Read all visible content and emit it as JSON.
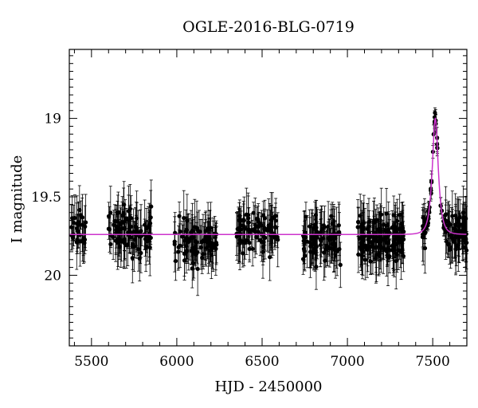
{
  "chart_data": {
    "type": "scatter",
    "title": "OGLE-2016-BLG-0719",
    "xlabel": "HJD - 2450000",
    "ylabel": "I magnitude",
    "xlim": [
      5370,
      7700
    ],
    "ylim": [
      20.45,
      18.56
    ],
    "y_inverted": true,
    "x_ticks": [
      5500,
      6000,
      6500,
      7000,
      7500
    ],
    "x_tick_labels": [
      "5500",
      "6000",
      "6500",
      "7000",
      "7500"
    ],
    "y_ticks": [
      19,
      19.5,
      20
    ],
    "y_tick_labels": [
      "19",
      "19.5",
      "20"
    ],
    "grid": false,
    "legend": "none",
    "model_color": "#cc33cc",
    "point_color": "#000000",
    "model": {
      "baseline_mag": 19.74,
      "peak_mag": 19.0,
      "peak_hjd": 7515,
      "duration_days": 28
    },
    "observing_seasons": [
      {
        "start": 5380,
        "end": 5470,
        "mean_mag": 19.72,
        "scatter": 0.15,
        "n": 28
      },
      {
        "start": 5600,
        "end": 5850,
        "mean_mag": 19.73,
        "scatter": 0.17,
        "n": 95
      },
      {
        "start": 5985,
        "end": 6240,
        "mean_mag": 19.79,
        "scatter": 0.17,
        "n": 90
      },
      {
        "start": 6350,
        "end": 6600,
        "mean_mag": 19.72,
        "scatter": 0.16,
        "n": 85
      },
      {
        "start": 6740,
        "end": 6960,
        "mean_mag": 19.78,
        "scatter": 0.15,
        "n": 95
      },
      {
        "start": 7060,
        "end": 7330,
        "mean_mag": 19.76,
        "scatter": 0.17,
        "n": 150
      },
      {
        "start": 7440,
        "end": 7700,
        "mean_mag": 19.74,
        "scatter": 0.15,
        "n": 130
      }
    ]
  }
}
